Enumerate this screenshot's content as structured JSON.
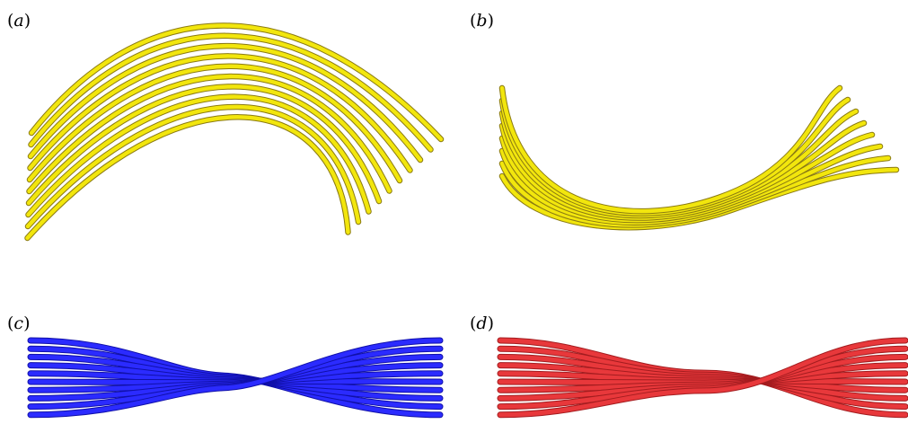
{
  "panels": [
    {
      "id": "a",
      "label": {
        "open": "(",
        "letter": "a",
        "close": ")"
      },
      "filament_color": "#f2e60d",
      "outline_color": "#8a7a12",
      "filament_count": 10
    },
    {
      "id": "b",
      "label": {
        "open": "(",
        "letter": "b",
        "close": ")"
      },
      "filament_color": "#f2e60d",
      "outline_color": "#8a7a12",
      "filament_count": 8
    },
    {
      "id": "c",
      "label": {
        "open": "(",
        "letter": "c",
        "close": ")"
      },
      "filament_color": "#2b2bff",
      "outline_color": "#1010a8",
      "filament_count": 10
    },
    {
      "id": "d",
      "label": {
        "open": "(",
        "letter": "d",
        "close": ")"
      },
      "filament_color": "#e8383b",
      "outline_color": "#a31c1f",
      "filament_count": 10
    }
  ]
}
